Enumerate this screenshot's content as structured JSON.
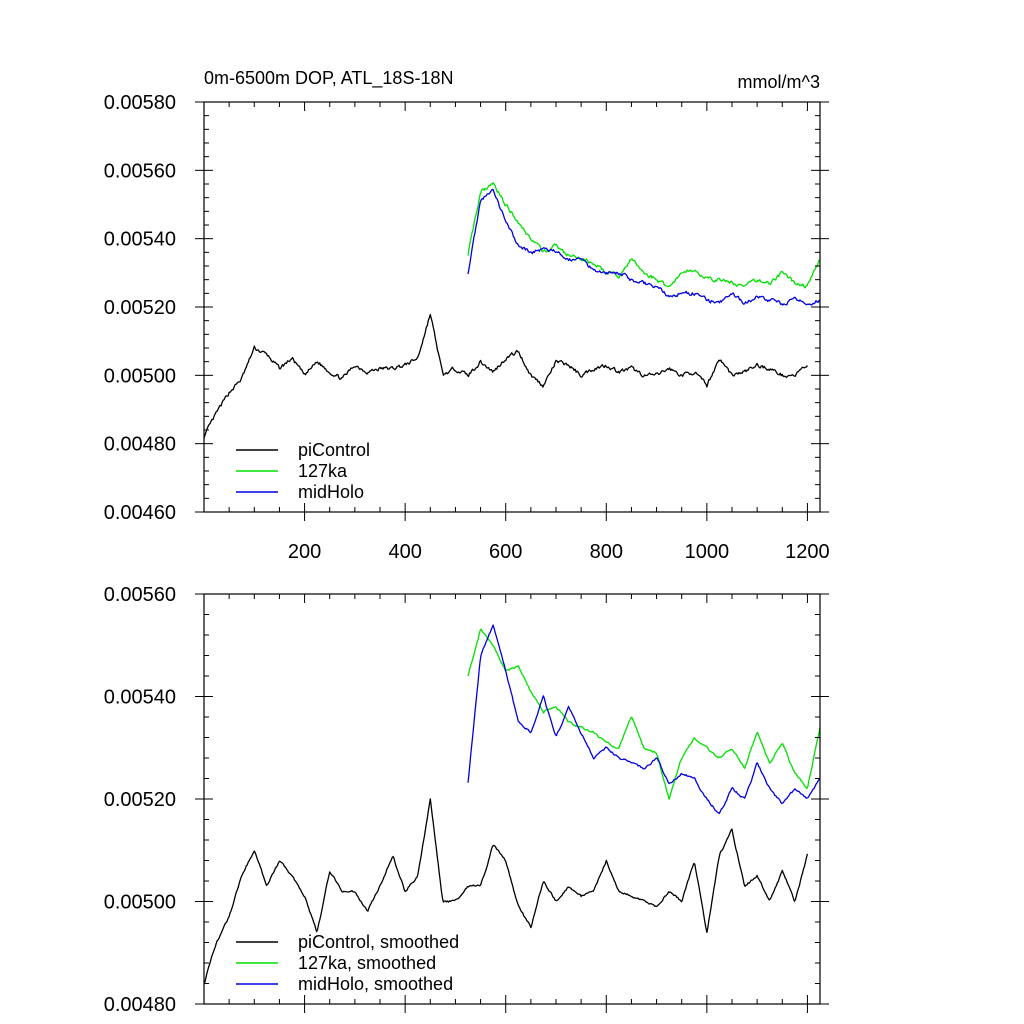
{
  "chart_data": [
    {
      "type": "line",
      "title": "0m-6500m DOP, ATL_18S-18N",
      "units": "mmol/m^3",
      "xlim": [
        0,
        1225
      ],
      "ylim": [
        0.0046,
        0.0058
      ],
      "x_ticks": [
        200,
        400,
        600,
        800,
        1000,
        1200
      ],
      "x_tick_labels": [
        "200",
        "400",
        "600",
        "800",
        "1000",
        "1200"
      ],
      "y_ticks": [
        0.0046,
        0.0048,
        0.005,
        0.0052,
        0.0054,
        0.0056,
        0.0058
      ],
      "y_tick_labels": [
        "0.00460",
        "0.00480",
        "0.00500",
        "0.00520",
        "0.00540",
        "0.00560",
        "0.00580"
      ],
      "grid": false,
      "legend": "bottom-left",
      "series": [
        {
          "name": "piControl",
          "color": "#000000",
          "x": [
            0,
            25,
            50,
            75,
            100,
            125,
            150,
            175,
            200,
            225,
            250,
            275,
            300,
            325,
            350,
            375,
            400,
            425,
            450,
            475,
            500,
            525,
            550,
            575,
            600,
            625,
            650,
            675,
            700,
            725,
            750,
            775,
            800,
            825,
            850,
            875,
            900,
            925,
            950,
            975,
            1000,
            1025,
            1050,
            1075,
            1100,
            1125,
            1150,
            1175,
            1200
          ],
          "y": [
            0.00482,
            0.00489,
            0.00495,
            0.00499,
            0.00508,
            0.00506,
            0.00502,
            0.00505,
            0.005,
            0.00504,
            0.00501,
            0.00499,
            0.00503,
            0.00501,
            0.00502,
            0.00502,
            0.00503,
            0.00505,
            0.00518,
            0.005,
            0.00502,
            0.005,
            0.00504,
            0.00501,
            0.00505,
            0.00507,
            0.005,
            0.00497,
            0.00504,
            0.00503,
            0.005,
            0.00502,
            0.00503,
            0.00501,
            0.00502,
            0.005,
            0.005,
            0.00502,
            0.005,
            0.00501,
            0.00497,
            0.00505,
            0.005,
            0.00501,
            0.00503,
            0.00502,
            0.005,
            0.005,
            0.00503
          ]
        },
        {
          "name": "127ka",
          "color": "#00e000",
          "x": [
            525,
            550,
            575,
            600,
            625,
            650,
            675,
            700,
            725,
            750,
            775,
            800,
            825,
            850,
            875,
            900,
            925,
            950,
            975,
            1000,
            1025,
            1050,
            1075,
            1100,
            1125,
            1150,
            1175,
            1200,
            1225
          ],
          "y": [
            0.00535,
            0.00554,
            0.00556,
            0.0055,
            0.00545,
            0.0054,
            0.00536,
            0.00538,
            0.00535,
            0.00534,
            0.00533,
            0.0053,
            0.00529,
            0.00534,
            0.0053,
            0.00528,
            0.00526,
            0.0053,
            0.00531,
            0.00528,
            0.00528,
            0.00527,
            0.00526,
            0.00528,
            0.00527,
            0.0053,
            0.00527,
            0.00526,
            0.00534
          ]
        },
        {
          "name": "midHolo",
          "color": "#0000e0",
          "x": [
            525,
            550,
            575,
            600,
            625,
            650,
            675,
            700,
            725,
            750,
            775,
            800,
            825,
            850,
            875,
            900,
            925,
            950,
            975,
            1000,
            1025,
            1050,
            1075,
            1100,
            1125,
            1150,
            1175,
            1200,
            1225
          ],
          "y": [
            0.0053,
            0.00551,
            0.00554,
            0.00545,
            0.00538,
            0.00536,
            0.00537,
            0.00536,
            0.00534,
            0.00534,
            0.00531,
            0.0053,
            0.0053,
            0.00528,
            0.00527,
            0.00526,
            0.00523,
            0.00524,
            0.00524,
            0.00522,
            0.00521,
            0.00524,
            0.00521,
            0.00523,
            0.00522,
            0.00521,
            0.00522,
            0.00521,
            0.00522
          ]
        }
      ]
    },
    {
      "type": "line",
      "xlim": [
        0,
        1225
      ],
      "ylim": [
        0.0048,
        0.0056
      ],
      "x_ticks": [
        200,
        400,
        600,
        800,
        1000,
        1200
      ],
      "y_ticks": [
        0.0048,
        0.005,
        0.0052,
        0.0054,
        0.0056
      ],
      "y_tick_labels": [
        "0.00480",
        "0.00500",
        "0.00520",
        "0.00540",
        "0.00560"
      ],
      "grid": false,
      "legend": "bottom-left",
      "series": [
        {
          "name": "piControl, smoothed",
          "color": "#000000",
          "x": [
            0,
            25,
            50,
            75,
            100,
            125,
            150,
            175,
            200,
            225,
            250,
            275,
            300,
            325,
            350,
            375,
            400,
            425,
            450,
            475,
            500,
            525,
            550,
            575,
            600,
            625,
            650,
            675,
            700,
            725,
            750,
            775,
            800,
            825,
            850,
            875,
            900,
            925,
            950,
            975,
            1000,
            1025,
            1050,
            1075,
            1100,
            1125,
            1150,
            1175,
            1200
          ],
          "y": [
            0.00484,
            0.00492,
            0.00497,
            0.00505,
            0.0051,
            0.00503,
            0.00508,
            0.00505,
            0.00501,
            0.00494,
            0.00506,
            0.00502,
            0.00502,
            0.00498,
            0.00503,
            0.00509,
            0.00502,
            0.00505,
            0.0052,
            0.005,
            0.005,
            0.00503,
            0.00503,
            0.00511,
            0.00508,
            0.00499,
            0.00495,
            0.00504,
            0.005,
            0.00503,
            0.00501,
            0.00502,
            0.00508,
            0.00502,
            0.00501,
            0.005,
            0.00499,
            0.00502,
            0.005,
            0.00508,
            0.00494,
            0.00509,
            0.00514,
            0.00503,
            0.00505,
            0.005,
            0.00506,
            0.005,
            0.00509
          ]
        },
        {
          "name": "127ka, smoothed",
          "color": "#00e000",
          "x": [
            525,
            550,
            575,
            600,
            625,
            650,
            675,
            700,
            725,
            750,
            775,
            800,
            825,
            850,
            875,
            900,
            925,
            950,
            975,
            1000,
            1025,
            1050,
            1075,
            1100,
            1125,
            1150,
            1175,
            1200,
            1225
          ],
          "y": [
            0.00544,
            0.00553,
            0.0055,
            0.00545,
            0.00546,
            0.00541,
            0.00537,
            0.00538,
            0.00535,
            0.00534,
            0.00533,
            0.00531,
            0.0053,
            0.00536,
            0.0053,
            0.00529,
            0.0052,
            0.00528,
            0.00532,
            0.0053,
            0.00528,
            0.0053,
            0.00526,
            0.00533,
            0.00527,
            0.00531,
            0.00525,
            0.00522,
            0.00534
          ]
        },
        {
          "name": "midHolo, smoothed",
          "color": "#0000e0",
          "x": [
            525,
            550,
            575,
            600,
            625,
            650,
            675,
            700,
            725,
            750,
            775,
            800,
            825,
            850,
            875,
            900,
            925,
            950,
            975,
            1000,
            1025,
            1050,
            1075,
            1100,
            1125,
            1150,
            1175,
            1200,
            1225
          ],
          "y": [
            0.00523,
            0.00548,
            0.00554,
            0.00545,
            0.00535,
            0.00533,
            0.0054,
            0.00532,
            0.00538,
            0.00533,
            0.00528,
            0.0053,
            0.00528,
            0.00527,
            0.00526,
            0.00528,
            0.00523,
            0.00525,
            0.00524,
            0.0052,
            0.00517,
            0.00522,
            0.0052,
            0.00527,
            0.00522,
            0.00519,
            0.00522,
            0.0052,
            0.00524
          ]
        }
      ]
    }
  ]
}
